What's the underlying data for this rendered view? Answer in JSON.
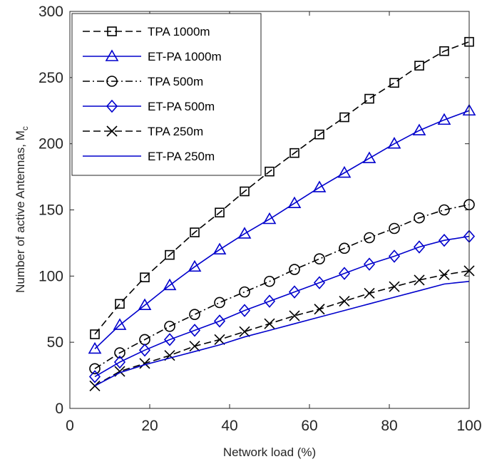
{
  "chart_data": {
    "type": "line",
    "xlabel": "Network load (%)",
    "ylabel": "Number of active Antennas, M",
    "ylabel_subscript": "c",
    "xlim": [
      0,
      100
    ],
    "ylim": [
      0,
      300
    ],
    "xticks": [
      0,
      20,
      40,
      60,
      80,
      100
    ],
    "yticks": [
      0,
      50,
      100,
      150,
      200,
      250,
      300
    ],
    "grid": false,
    "legend_position": "top-left",
    "x": [
      6.25,
      12.5,
      18.75,
      25,
      31.25,
      37.5,
      43.75,
      50,
      56.25,
      62.5,
      68.75,
      75,
      81.25,
      87.5,
      93.75,
      100
    ],
    "series": [
      {
        "name": "TPA 1000m",
        "color": "#000000",
        "dash": "dashed",
        "marker": "square",
        "values": [
          56,
          79,
          99,
          116,
          133,
          148,
          164,
          179,
          193,
          207,
          220,
          234,
          246,
          259,
          270,
          277
        ]
      },
      {
        "name": "ET-PA 1000m",
        "color": "#0000cc",
        "dash": "solid",
        "marker": "triangle",
        "values": [
          45,
          63,
          78,
          93,
          107,
          120,
          132,
          143,
          155,
          167,
          178,
          189,
          200,
          210,
          218,
          225
        ]
      },
      {
        "name": "TPA 500m",
        "color": "#000000",
        "dash": "dashdot",
        "marker": "circle",
        "values": [
          30,
          42,
          52,
          62,
          71,
          80,
          88,
          96,
          105,
          113,
          121,
          129,
          136,
          144,
          150,
          154
        ]
      },
      {
        "name": "ET-PA 500m",
        "color": "#0000cc",
        "dash": "solid",
        "marker": "diamond",
        "values": [
          24,
          35,
          44,
          52,
          59,
          66,
          74,
          81,
          88,
          95,
          102,
          109,
          115,
          122,
          127,
          130
        ]
      },
      {
        "name": "TPA 250m",
        "color": "#000000",
        "dash": "dashed",
        "marker": "x",
        "values": [
          17,
          28,
          34,
          40,
          47,
          52,
          58,
          64,
          70,
          75,
          81,
          87,
          92,
          97,
          101,
          104
        ]
      },
      {
        "name": "ET-PA 250m",
        "color": "#0000cc",
        "dash": "solid",
        "marker": "none",
        "values": [
          17,
          27,
          33,
          38,
          43,
          48,
          54,
          59,
          64,
          69,
          74,
          79,
          84,
          89,
          94,
          96
        ]
      }
    ]
  }
}
